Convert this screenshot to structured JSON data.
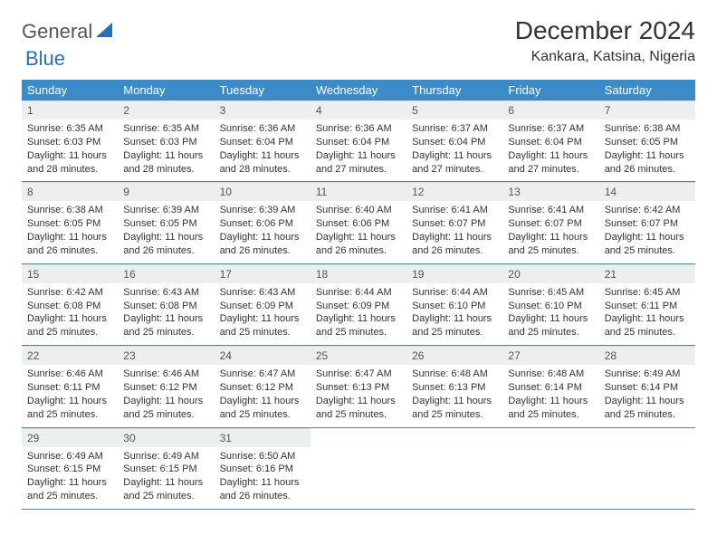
{
  "logo": {
    "part1": "General",
    "part2": "Blue"
  },
  "title": "December 2024",
  "location": "Kankara, Katsina, Nigeria",
  "colors": {
    "header_bg": "#3b8bc9",
    "header_text": "#ffffff",
    "daynum_bg": "#eceef0",
    "rule": "#3b8bc9",
    "logo_accent": "#2a6fb5"
  },
  "weekdays": [
    "Sunday",
    "Monday",
    "Tuesday",
    "Wednesday",
    "Thursday",
    "Friday",
    "Saturday"
  ],
  "days": [
    {
      "n": "1",
      "sunrise": "6:35 AM",
      "sunset": "6:03 PM",
      "daylight": "11 hours and 28 minutes."
    },
    {
      "n": "2",
      "sunrise": "6:35 AM",
      "sunset": "6:03 PM",
      "daylight": "11 hours and 28 minutes."
    },
    {
      "n": "3",
      "sunrise": "6:36 AM",
      "sunset": "6:04 PM",
      "daylight": "11 hours and 28 minutes."
    },
    {
      "n": "4",
      "sunrise": "6:36 AM",
      "sunset": "6:04 PM",
      "daylight": "11 hours and 27 minutes."
    },
    {
      "n": "5",
      "sunrise": "6:37 AM",
      "sunset": "6:04 PM",
      "daylight": "11 hours and 27 minutes."
    },
    {
      "n": "6",
      "sunrise": "6:37 AM",
      "sunset": "6:04 PM",
      "daylight": "11 hours and 27 minutes."
    },
    {
      "n": "7",
      "sunrise": "6:38 AM",
      "sunset": "6:05 PM",
      "daylight": "11 hours and 26 minutes."
    },
    {
      "n": "8",
      "sunrise": "6:38 AM",
      "sunset": "6:05 PM",
      "daylight": "11 hours and 26 minutes."
    },
    {
      "n": "9",
      "sunrise": "6:39 AM",
      "sunset": "6:05 PM",
      "daylight": "11 hours and 26 minutes."
    },
    {
      "n": "10",
      "sunrise": "6:39 AM",
      "sunset": "6:06 PM",
      "daylight": "11 hours and 26 minutes."
    },
    {
      "n": "11",
      "sunrise": "6:40 AM",
      "sunset": "6:06 PM",
      "daylight": "11 hours and 26 minutes."
    },
    {
      "n": "12",
      "sunrise": "6:41 AM",
      "sunset": "6:07 PM",
      "daylight": "11 hours and 26 minutes."
    },
    {
      "n": "13",
      "sunrise": "6:41 AM",
      "sunset": "6:07 PM",
      "daylight": "11 hours and 25 minutes."
    },
    {
      "n": "14",
      "sunrise": "6:42 AM",
      "sunset": "6:07 PM",
      "daylight": "11 hours and 25 minutes."
    },
    {
      "n": "15",
      "sunrise": "6:42 AM",
      "sunset": "6:08 PM",
      "daylight": "11 hours and 25 minutes."
    },
    {
      "n": "16",
      "sunrise": "6:43 AM",
      "sunset": "6:08 PM",
      "daylight": "11 hours and 25 minutes."
    },
    {
      "n": "17",
      "sunrise": "6:43 AM",
      "sunset": "6:09 PM",
      "daylight": "11 hours and 25 minutes."
    },
    {
      "n": "18",
      "sunrise": "6:44 AM",
      "sunset": "6:09 PM",
      "daylight": "11 hours and 25 minutes."
    },
    {
      "n": "19",
      "sunrise": "6:44 AM",
      "sunset": "6:10 PM",
      "daylight": "11 hours and 25 minutes."
    },
    {
      "n": "20",
      "sunrise": "6:45 AM",
      "sunset": "6:10 PM",
      "daylight": "11 hours and 25 minutes."
    },
    {
      "n": "21",
      "sunrise": "6:45 AM",
      "sunset": "6:11 PM",
      "daylight": "11 hours and 25 minutes."
    },
    {
      "n": "22",
      "sunrise": "6:46 AM",
      "sunset": "6:11 PM",
      "daylight": "11 hours and 25 minutes."
    },
    {
      "n": "23",
      "sunrise": "6:46 AM",
      "sunset": "6:12 PM",
      "daylight": "11 hours and 25 minutes."
    },
    {
      "n": "24",
      "sunrise": "6:47 AM",
      "sunset": "6:12 PM",
      "daylight": "11 hours and 25 minutes."
    },
    {
      "n": "25",
      "sunrise": "6:47 AM",
      "sunset": "6:13 PM",
      "daylight": "11 hours and 25 minutes."
    },
    {
      "n": "26",
      "sunrise": "6:48 AM",
      "sunset": "6:13 PM",
      "daylight": "11 hours and 25 minutes."
    },
    {
      "n": "27",
      "sunrise": "6:48 AM",
      "sunset": "6:14 PM",
      "daylight": "11 hours and 25 minutes."
    },
    {
      "n": "28",
      "sunrise": "6:49 AM",
      "sunset": "6:14 PM",
      "daylight": "11 hours and 25 minutes."
    },
    {
      "n": "29",
      "sunrise": "6:49 AM",
      "sunset": "6:15 PM",
      "daylight": "11 hours and 25 minutes."
    },
    {
      "n": "30",
      "sunrise": "6:49 AM",
      "sunset": "6:15 PM",
      "daylight": "11 hours and 25 minutes."
    },
    {
      "n": "31",
      "sunrise": "6:50 AM",
      "sunset": "6:16 PM",
      "daylight": "11 hours and 26 minutes."
    }
  ],
  "labels": {
    "sunrise": "Sunrise: ",
    "sunset": "Sunset: ",
    "daylight": "Daylight: "
  },
  "layout": {
    "first_weekday_index": 0,
    "weeks": 5,
    "cols": 7
  }
}
